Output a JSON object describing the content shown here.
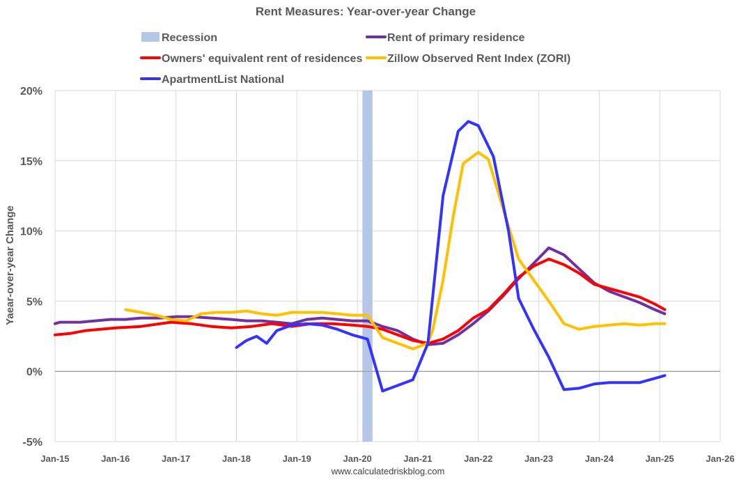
{
  "chart_data": {
    "type": "line",
    "title": "Rent Measures: Year-over-year Change",
    "ylabel": "Yaear-over-year Change",
    "xlabel": "",
    "source": "www.calculatedriskblog.com",
    "ylim": [
      -5,
      20
    ],
    "y_ticks": [
      {
        "value": 20,
        "label": "20%"
      },
      {
        "value": 15,
        "label": "15%"
      },
      {
        "value": 10,
        "label": "10%"
      },
      {
        "value": 5,
        "label": "5%"
      },
      {
        "value": 0,
        "label": "0%"
      },
      {
        "value": -5,
        "label": "-5%"
      }
    ],
    "x_range": [
      "2015-01",
      "2026-01"
    ],
    "x_ticks": [
      {
        "date": "2015-01",
        "label": "Jan-15"
      },
      {
        "date": "2016-01",
        "label": "Jan-16"
      },
      {
        "date": "2017-01",
        "label": "Jan-17"
      },
      {
        "date": "2018-01",
        "label": "Jan-18"
      },
      {
        "date": "2019-01",
        "label": "Jan-19"
      },
      {
        "date": "2020-01",
        "label": "Jan-20"
      },
      {
        "date": "2021-01",
        "label": "Jan-21"
      },
      {
        "date": "2022-01",
        "label": "Jan-22"
      },
      {
        "date": "2023-01",
        "label": "Jan-23"
      },
      {
        "date": "2024-01",
        "label": "Jan-24"
      },
      {
        "date": "2025-01",
        "label": "Jan-25"
      },
      {
        "date": "2026-01",
        "label": "Jan-26"
      }
    ],
    "grid": "vertical",
    "legend_position": "top",
    "recession": {
      "name": "Recession",
      "start": "2020-02",
      "end": "2020-04",
      "color": "#b4c7e7"
    },
    "series": [
      {
        "name": "Rent of primary residence",
        "color": "#7030a0",
        "points": [
          [
            "2015-01",
            3.4
          ],
          [
            "2015-02",
            3.5
          ],
          [
            "2015-04",
            3.5
          ],
          [
            "2015-06",
            3.5
          ],
          [
            "2015-09",
            3.6
          ],
          [
            "2015-12",
            3.7
          ],
          [
            "2016-03",
            3.7
          ],
          [
            "2016-06",
            3.8
          ],
          [
            "2016-10",
            3.8
          ],
          [
            "2017-01",
            3.9
          ],
          [
            "2017-04",
            3.9
          ],
          [
            "2017-08",
            3.8
          ],
          [
            "2017-12",
            3.7
          ],
          [
            "2018-03",
            3.6
          ],
          [
            "2018-06",
            3.6
          ],
          [
            "2018-09",
            3.5
          ],
          [
            "2018-12",
            3.4
          ],
          [
            "2019-03",
            3.7
          ],
          [
            "2019-06",
            3.8
          ],
          [
            "2019-09",
            3.7
          ],
          [
            "2019-12",
            3.6
          ],
          [
            "2020-03",
            3.6
          ],
          [
            "2020-06",
            3.2
          ],
          [
            "2020-09",
            2.9
          ],
          [
            "2020-12",
            2.3
          ],
          [
            "2021-03",
            1.9
          ],
          [
            "2021-06",
            2.0
          ],
          [
            "2021-09",
            2.6
          ],
          [
            "2021-12",
            3.4
          ],
          [
            "2022-03",
            4.3
          ],
          [
            "2022-06",
            5.4
          ],
          [
            "2022-09",
            6.6
          ],
          [
            "2022-12",
            7.7
          ],
          [
            "2023-03",
            8.8
          ],
          [
            "2023-06",
            8.3
          ],
          [
            "2023-09",
            7.3
          ],
          [
            "2023-12",
            6.3
          ],
          [
            "2024-03",
            5.7
          ],
          [
            "2024-06",
            5.3
          ],
          [
            "2024-09",
            4.9
          ],
          [
            "2024-12",
            4.4
          ],
          [
            "2025-02",
            4.1
          ]
        ]
      },
      {
        "name": "Owners' equivalent rent of residences",
        "color": "#ff0000",
        "points": [
          [
            "2015-01",
            2.6
          ],
          [
            "2015-04",
            2.7
          ],
          [
            "2015-07",
            2.9
          ],
          [
            "2015-10",
            3.0
          ],
          [
            "2016-01",
            3.1
          ],
          [
            "2016-06",
            3.2
          ],
          [
            "2016-12",
            3.5
          ],
          [
            "2017-04",
            3.4
          ],
          [
            "2017-08",
            3.2
          ],
          [
            "2017-12",
            3.1
          ],
          [
            "2018-04",
            3.2
          ],
          [
            "2018-08",
            3.4
          ],
          [
            "2018-12",
            3.2
          ],
          [
            "2019-04",
            3.4
          ],
          [
            "2019-08",
            3.4
          ],
          [
            "2019-12",
            3.3
          ],
          [
            "2020-03",
            3.2
          ],
          [
            "2020-06",
            3.0
          ],
          [
            "2020-09",
            2.6
          ],
          [
            "2020-12",
            2.2
          ],
          [
            "2021-03",
            2.0
          ],
          [
            "2021-06",
            2.3
          ],
          [
            "2021-09",
            2.9
          ],
          [
            "2021-12",
            3.8
          ],
          [
            "2022-03",
            4.4
          ],
          [
            "2022-06",
            5.5
          ],
          [
            "2022-09",
            6.7
          ],
          [
            "2022-12",
            7.5
          ],
          [
            "2023-03",
            8.0
          ],
          [
            "2023-06",
            7.6
          ],
          [
            "2023-09",
            7.0
          ],
          [
            "2023-12",
            6.2
          ],
          [
            "2024-03",
            5.9
          ],
          [
            "2024-06",
            5.6
          ],
          [
            "2024-09",
            5.3
          ],
          [
            "2024-12",
            4.8
          ],
          [
            "2025-02",
            4.4
          ]
        ]
      },
      {
        "name": "Zillow Observed Rent Index (ZORI)",
        "color": "#ffc000",
        "points": [
          [
            "2016-03",
            4.4
          ],
          [
            "2016-06",
            4.2
          ],
          [
            "2016-09",
            4.0
          ],
          [
            "2016-12",
            3.7
          ],
          [
            "2017-03",
            3.6
          ],
          [
            "2017-06",
            4.1
          ],
          [
            "2017-09",
            4.2
          ],
          [
            "2017-12",
            4.2
          ],
          [
            "2018-03",
            4.3
          ],
          [
            "2018-06",
            4.1
          ],
          [
            "2018-09",
            4.0
          ],
          [
            "2018-12",
            4.2
          ],
          [
            "2019-03",
            4.2
          ],
          [
            "2019-06",
            4.2
          ],
          [
            "2019-09",
            4.1
          ],
          [
            "2019-12",
            4.0
          ],
          [
            "2020-03",
            4.0
          ],
          [
            "2020-06",
            2.4
          ],
          [
            "2020-09",
            2.0
          ],
          [
            "2020-12",
            1.6
          ],
          [
            "2021-03",
            2.0
          ],
          [
            "2021-04",
            3.0
          ],
          [
            "2021-06",
            6.5
          ],
          [
            "2021-08",
            11.0
          ],
          [
            "2021-10",
            14.8
          ],
          [
            "2022-01",
            15.6
          ],
          [
            "2022-03",
            15.1
          ],
          [
            "2022-06",
            11.5
          ],
          [
            "2022-09",
            8.0
          ],
          [
            "2022-12",
            6.5
          ],
          [
            "2023-03",
            5.0
          ],
          [
            "2023-06",
            3.4
          ],
          [
            "2023-09",
            3.0
          ],
          [
            "2023-12",
            3.2
          ],
          [
            "2024-03",
            3.3
          ],
          [
            "2024-06",
            3.4
          ],
          [
            "2024-09",
            3.3
          ],
          [
            "2024-12",
            3.4
          ],
          [
            "2025-02",
            3.4
          ]
        ]
      },
      {
        "name": "ApartmentList National",
        "color": "#3333ff",
        "points": [
          [
            "2018-01",
            1.7
          ],
          [
            "2018-03",
            2.2
          ],
          [
            "2018-05",
            2.5
          ],
          [
            "2018-07",
            2.0
          ],
          [
            "2018-09",
            2.9
          ],
          [
            "2018-12",
            3.3
          ],
          [
            "2019-03",
            3.4
          ],
          [
            "2019-06",
            3.3
          ],
          [
            "2019-09",
            3.0
          ],
          [
            "2019-12",
            2.6
          ],
          [
            "2020-03",
            2.3
          ],
          [
            "2020-06",
            -1.4
          ],
          [
            "2020-09",
            -1.0
          ],
          [
            "2020-12",
            -0.6
          ],
          [
            "2021-03",
            2.0
          ],
          [
            "2021-06",
            12.5
          ],
          [
            "2021-09",
            17.1
          ],
          [
            "2021-11",
            17.8
          ],
          [
            "2022-01",
            17.5
          ],
          [
            "2022-04",
            15.3
          ],
          [
            "2022-07",
            10.0
          ],
          [
            "2022-09",
            5.2
          ],
          [
            "2022-12",
            3.0
          ],
          [
            "2023-03",
            1.0
          ],
          [
            "2023-06",
            -1.3
          ],
          [
            "2023-09",
            -1.2
          ],
          [
            "2023-12",
            -0.9
          ],
          [
            "2024-03",
            -0.8
          ],
          [
            "2024-06",
            -0.8
          ],
          [
            "2024-09",
            -0.8
          ],
          [
            "2024-12",
            -0.5
          ],
          [
            "2025-02",
            -0.3
          ]
        ]
      }
    ],
    "legend": [
      {
        "label": "Recession",
        "kind": "box",
        "color": "#b4c7e7"
      },
      {
        "label": "Rent of primary residence",
        "kind": "line",
        "color": "#7030a0"
      },
      {
        "label": "Owners' equivalent rent of residences",
        "kind": "line",
        "color": "#ff0000"
      },
      {
        "label": "Zillow Observed Rent Index (ZORI)",
        "kind": "line",
        "color": "#ffc000"
      },
      {
        "label": "ApartmentList National",
        "kind": "line",
        "color": "#3333ff"
      }
    ]
  }
}
